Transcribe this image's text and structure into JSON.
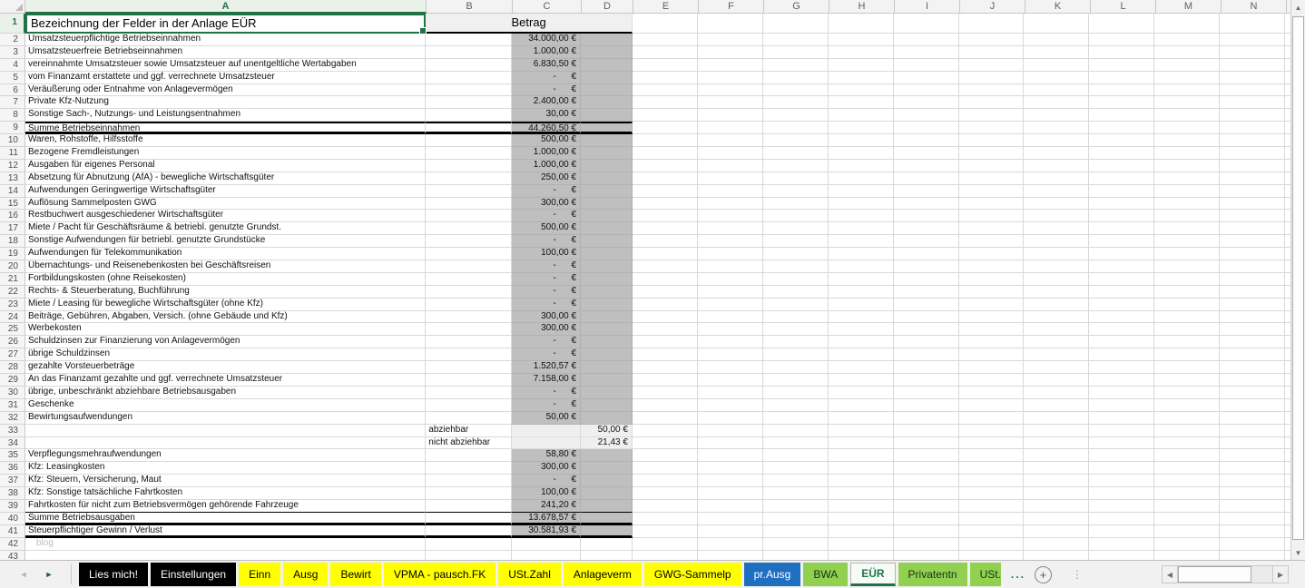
{
  "sheet": {
    "columns": [
      "A",
      "B",
      "C",
      "D",
      "E",
      "F",
      "G",
      "H",
      "I",
      "J",
      "K",
      "L",
      "M",
      "N"
    ],
    "selected_column": "A",
    "header_row": {
      "number": "1",
      "title": "Bezeichnung der Felder in der Anlage EÜR",
      "amount_header": "Betrag"
    },
    "rows": [
      {
        "n": "2",
        "a": "Umsatzsteuerpflichtige Betriebseinnahmen",
        "c": "34.000,00 €"
      },
      {
        "n": "3",
        "a": "Umsatzsteuerfreie Betriebseinnahmen",
        "c": "1.000,00 €"
      },
      {
        "n": "4",
        "a": "vereinnahmte Umsatzsteuer sowie Umsatzsteuer auf unentgeltliche Wertabgaben",
        "c": "6.830,50 €"
      },
      {
        "n": "5",
        "a": "vom Finanzamt erstattete und ggf. verrechnete Umsatzsteuer",
        "c": "-      €"
      },
      {
        "n": "6",
        "a": "Veräußerung oder Entnahme von Anlagevermögen",
        "c": "-      €"
      },
      {
        "n": "7",
        "a": "Private Kfz-Nutzung",
        "c": "2.400,00 €"
      },
      {
        "n": "8",
        "a": "Sonstige Sach-, Nutzungs- und Leistungsentnahmen",
        "c": "30,00 €"
      },
      {
        "n": "9",
        "a": "Summe Betriebseinnahmen",
        "c": "44.260,50 €",
        "border": "t2 b3"
      },
      {
        "n": "10",
        "a": "Waren, Rohstoffe, Hilfsstoffe",
        "c": "500,00 €"
      },
      {
        "n": "11",
        "a": "Bezogene Fremdleistungen",
        "c": "1.000,00 €"
      },
      {
        "n": "12",
        "a": "Ausgaben für eigenes Personal",
        "c": "1.000,00 €"
      },
      {
        "n": "13",
        "a": "Absetzung für Abnutzung (AfA) - bewegliche Wirtschaftsgüter",
        "c": "250,00 €"
      },
      {
        "n": "14",
        "a": "Aufwendungen Geringwertige Wirtschaftsgüter",
        "c": "-      €"
      },
      {
        "n": "15",
        "a": "Auflösung Sammelposten GWG",
        "c": "300,00 €"
      },
      {
        "n": "16",
        "a": "Restbuchwert ausgeschiedener Wirtschaftsgüter",
        "c": "-      €"
      },
      {
        "n": "17",
        "a": "Miete / Pacht für Geschäftsräume & betriebl. genutzte Grundst.",
        "c": "500,00 €"
      },
      {
        "n": "18",
        "a": "Sonstige Aufwendungen für betriebl. genutzte Grundstücke",
        "c": "-      €"
      },
      {
        "n": "19",
        "a": "Aufwendungen für Telekommunikation",
        "c": "100,00 €"
      },
      {
        "n": "20",
        "a": "Übernachtungs- und Reisenebenkosten bei Geschäftsreisen",
        "c": "-      €"
      },
      {
        "n": "21",
        "a": "Fortbildungskosten (ohne Reisekosten)",
        "c": "-      €"
      },
      {
        "n": "22",
        "a": "Rechts- & Steuerberatung, Buchführung",
        "c": "-      €"
      },
      {
        "n": "23",
        "a": "Miete / Leasing für bewegliche Wirtschaftsgüter (ohne Kfz)",
        "c": "-      €"
      },
      {
        "n": "24",
        "a": "Beiträge, Gebühren, Abgaben, Versich. (ohne Gebäude und Kfz)",
        "c": "300,00 €"
      },
      {
        "n": "25",
        "a": "Werbekosten",
        "c": "300,00 €"
      },
      {
        "n": "26",
        "a": "Schuldzinsen zur Finanzierung von Anlagevermögen",
        "c": "-      €"
      },
      {
        "n": "27",
        "a": "übrige Schuldzinsen",
        "c": "-      €"
      },
      {
        "n": "28",
        "a": "gezahlte Vorsteuerbeträge",
        "c": "1.520,57 €"
      },
      {
        "n": "29",
        "a": "An das Finanzamt gezahlte und ggf. verrechnete Umsatzsteuer",
        "c": "7.158,00 €"
      },
      {
        "n": "30",
        "a": "übrige, unbeschränkt abziehbare Betriebsausgaben",
        "c": "-      €"
      },
      {
        "n": "31",
        "a": "Geschenke",
        "c": "-      €"
      },
      {
        "n": "32",
        "a": "Bewirtungsaufwendungen",
        "c": "50,00 €"
      },
      {
        "n": "33",
        "b": "abziehbar",
        "d": "50,00 €",
        "shade": "light"
      },
      {
        "n": "34",
        "b": "nicht abziehbar",
        "d": "21,43 €",
        "shade": "light"
      },
      {
        "n": "35",
        "a": "Verpflegungsmehraufwendungen",
        "c": "58,80 €"
      },
      {
        "n": "36",
        "a": "Kfz: Leasingkosten",
        "c": "300,00 €"
      },
      {
        "n": "37",
        "a": "Kfz: Steuern, Versicherung, Maut",
        "c": "-      €"
      },
      {
        "n": "38",
        "a": "Kfz: Sonstige tatsächliche Fahrtkosten",
        "c": "100,00 €"
      },
      {
        "n": "39",
        "a": "Fahrtkosten für nicht zum Betriebsvermögen gehörende Fahrzeuge",
        "c": "241,20 €",
        "border": "b1"
      },
      {
        "n": "40",
        "a": "Summe Betriebsausgaben",
        "c": "13.678,57 €",
        "border": "b3"
      },
      {
        "n": "41",
        "a": "Steuerpflichtiger Gewinn / Verlust",
        "c": "30.581,93 €",
        "border": "b3"
      },
      {
        "n": "42",
        "a": "blog",
        "shade": "none",
        "watermark": true
      },
      {
        "n": "43",
        "shade": "none"
      }
    ]
  },
  "scrollbars": {
    "up": "▲",
    "down": "▼",
    "left": "◀",
    "right": "▶"
  },
  "tab_bar": {
    "nav_prev": "◄",
    "nav_next": "►",
    "tabs": [
      {
        "label": "Lies mich!",
        "style": "black"
      },
      {
        "label": "Einstellungen",
        "style": "black"
      },
      {
        "label": "Einn",
        "style": "yellow"
      },
      {
        "label": "Ausg",
        "style": "yellow"
      },
      {
        "label": "Bewirt",
        "style": "yellow"
      },
      {
        "label": "VPMA - pausch.FK",
        "style": "yellow"
      },
      {
        "label": "USt.Zahl",
        "style": "yellow"
      },
      {
        "label": "Anlageverm",
        "style": "yellow"
      },
      {
        "label": "GWG-Sammelp",
        "style": "yellow"
      },
      {
        "label": "pr.Ausg",
        "style": "blue"
      },
      {
        "label": "BWA",
        "style": "green"
      },
      {
        "label": "EÜR",
        "style": "active"
      },
      {
        "label": "Privatentn",
        "style": "green"
      },
      {
        "label": "USt.",
        "style": "green",
        "clipped": true
      }
    ],
    "more_label": "...",
    "add_sheet_label": "+"
  },
  "colors": {
    "accent_green": "#217346",
    "band_gray": "#bfbfbf",
    "light_gray": "#efefef",
    "tab_yellow": "#ffff00",
    "tab_blue": "#1e6fc0",
    "tab_green": "#92d050",
    "tab_black": "#000000"
  }
}
